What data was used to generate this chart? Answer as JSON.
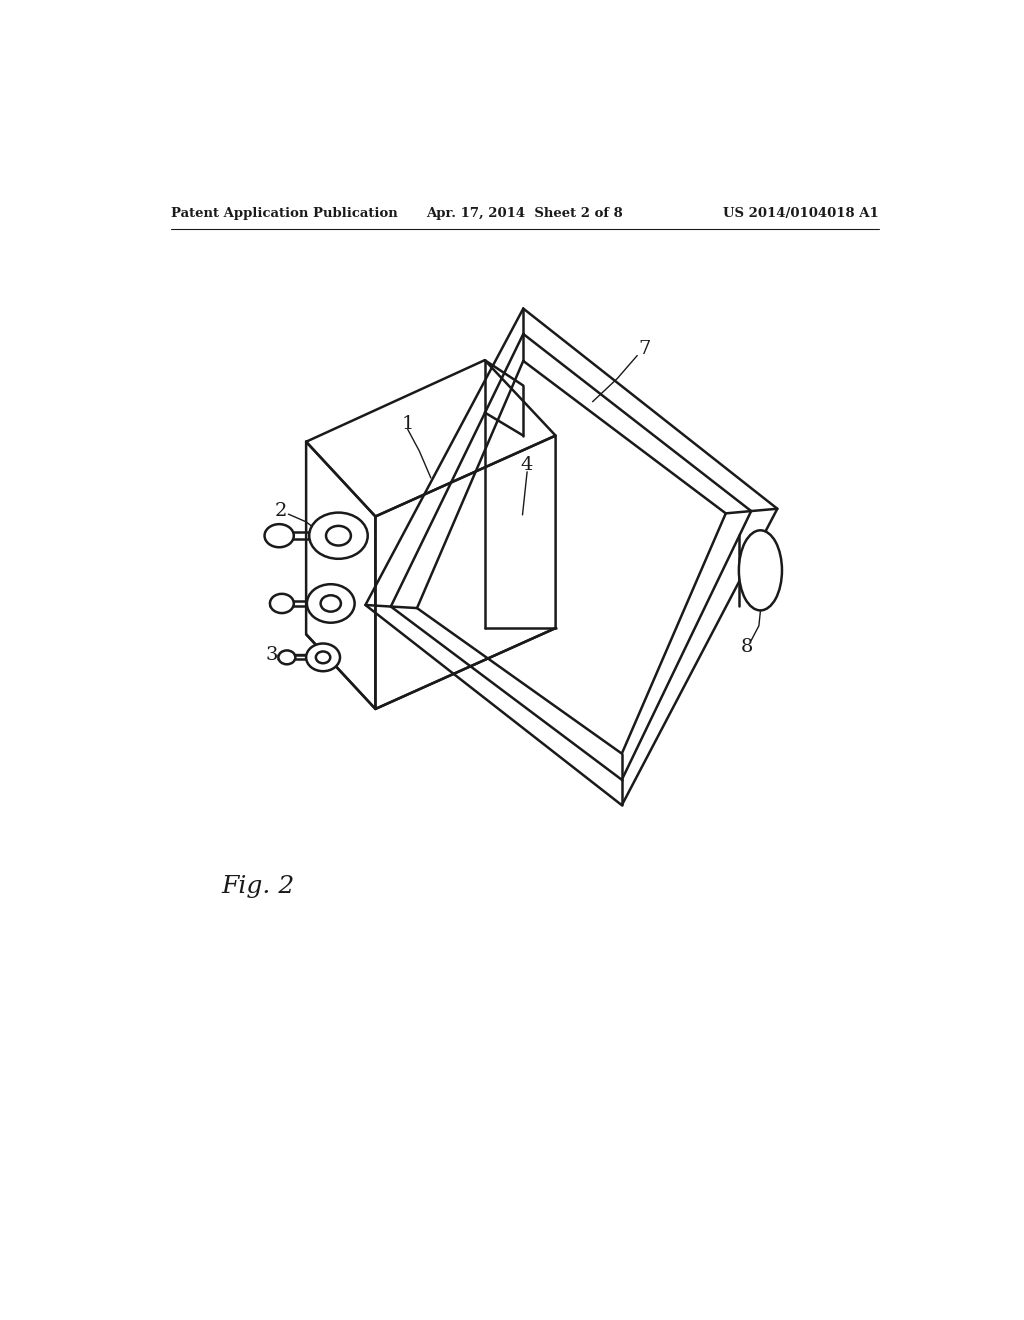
{
  "background_color": "#ffffff",
  "line_color": "#1a1a1a",
  "header_left": "Patent Application Publication",
  "header_center": "Apr. 17, 2014  Sheet 2 of 8",
  "header_right": "US 2014/0104018 A1",
  "figure_label": "Fig. 2",
  "lw": 1.8
}
